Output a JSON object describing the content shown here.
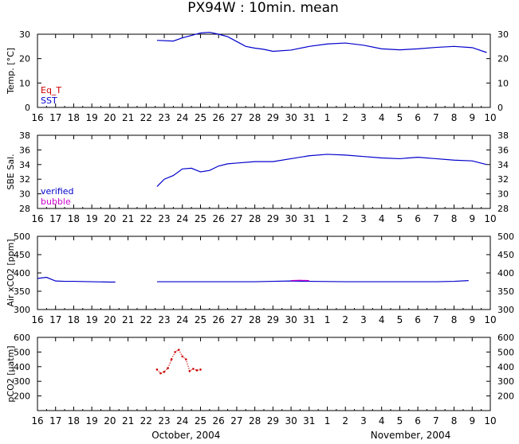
{
  "title": "PX94W : 10min. mean",
  "x_axis": {
    "tick_labels": [
      "16",
      "17",
      "18",
      "19",
      "20",
      "21",
      "22",
      "23",
      "24",
      "25",
      "26",
      "27",
      "28",
      "29",
      "30",
      "31",
      "1",
      "2",
      "3",
      "4",
      "5",
      "6",
      "7",
      "8",
      "9",
      "10"
    ],
    "month_labels": [
      "October, 2004",
      "November, 2004"
    ]
  },
  "colors": {
    "blue": "#0000cc",
    "red": "#cc0000",
    "magenta": "#cc00cc",
    "axis": "#000000"
  },
  "chart_data": [
    {
      "type": "line",
      "ylabel": "Temp. [°C]",
      "ylim": [
        0,
        30
      ],
      "yticks": [
        0,
        10,
        20,
        30
      ],
      "legend": [
        "Eq_T",
        "SST"
      ],
      "legend_colors": [
        "#cc0000",
        "#0000cc"
      ],
      "series": [
        {
          "name": "SST",
          "color": "#0000cc",
          "x": [
            22.6,
            23.5,
            24,
            24.5,
            25,
            25.5,
            26,
            26.5,
            27,
            27.5,
            28,
            28.5,
            29,
            30,
            31,
            32,
            33,
            34,
            35,
            36,
            37,
            38,
            39,
            40,
            40.8
          ],
          "y": [
            27.5,
            27.2,
            28.5,
            29.5,
            30.5,
            30.8,
            30,
            29,
            27,
            25,
            24.3,
            23.8,
            23,
            23.5,
            25,
            26,
            26.4,
            25.5,
            24,
            23.6,
            24,
            24.6,
            25,
            24.5,
            22.5
          ]
        }
      ]
    },
    {
      "type": "line",
      "ylabel": "SBE Sal.",
      "ylim": [
        28,
        38
      ],
      "yticks": [
        28,
        30,
        32,
        34,
        36,
        38
      ],
      "legend": [
        "verified",
        "bubble"
      ],
      "legend_colors": [
        "#0000cc",
        "#cc00cc"
      ],
      "series": [
        {
          "name": "verified",
          "color": "#0000cc",
          "x": [
            22.6,
            23,
            23.5,
            24,
            24.5,
            25,
            25.5,
            26,
            26.5,
            27,
            28,
            29,
            30,
            31,
            32,
            33,
            34,
            35,
            36,
            37,
            38,
            39,
            40,
            40.8
          ],
          "y": [
            31.0,
            32.0,
            32.5,
            33.4,
            33.5,
            33.0,
            33.2,
            33.8,
            34.1,
            34.2,
            34.4,
            34.4,
            34.8,
            35.2,
            35.4,
            35.3,
            35.1,
            34.9,
            34.8,
            35.0,
            34.8,
            34.6,
            34.5,
            34.0
          ]
        }
      ]
    },
    {
      "type": "line",
      "ylabel": "Air xCO2 [ppm]",
      "ylim": [
        300,
        500
      ],
      "yticks": [
        300,
        350,
        400,
        450,
        500
      ],
      "series": [
        {
          "name": "",
          "color": "#0000cc",
          "x": [
            16,
            16.5,
            17,
            17.5,
            18,
            19,
            20,
            20.3
          ],
          "y": [
            385,
            388,
            378,
            377,
            377,
            376,
            375,
            375
          ]
        },
        {
          "name": "",
          "color": "#0000cc",
          "x": [
            22.6,
            24,
            26,
            28,
            29,
            30,
            31,
            33,
            35,
            37,
            38,
            39,
            39.8
          ],
          "y": [
            376,
            376,
            376,
            376,
            377,
            378,
            377,
            376,
            376,
            376,
            376,
            377,
            379
          ]
        },
        {
          "name": "",
          "color": "#cc00cc",
          "x": [
            30,
            30.5,
            31
          ],
          "y": [
            379,
            380,
            379
          ]
        }
      ]
    },
    {
      "type": "scatter",
      "ylabel": "pCO2 [μatm]",
      "ylim": [
        100,
        600
      ],
      "yticks": [
        200,
        300,
        400,
        500,
        600
      ],
      "series": [
        {
          "name": "",
          "color": "#cc0000",
          "x": [
            22.6,
            22.8,
            23.0,
            23.2,
            23.4,
            23.6,
            23.8,
            24.0,
            24.2,
            24.4,
            24.6,
            24.8,
            25.0
          ],
          "y": [
            380,
            355,
            365,
            390,
            450,
            500,
            515,
            470,
            450,
            370,
            385,
            375,
            380
          ]
        }
      ]
    }
  ]
}
